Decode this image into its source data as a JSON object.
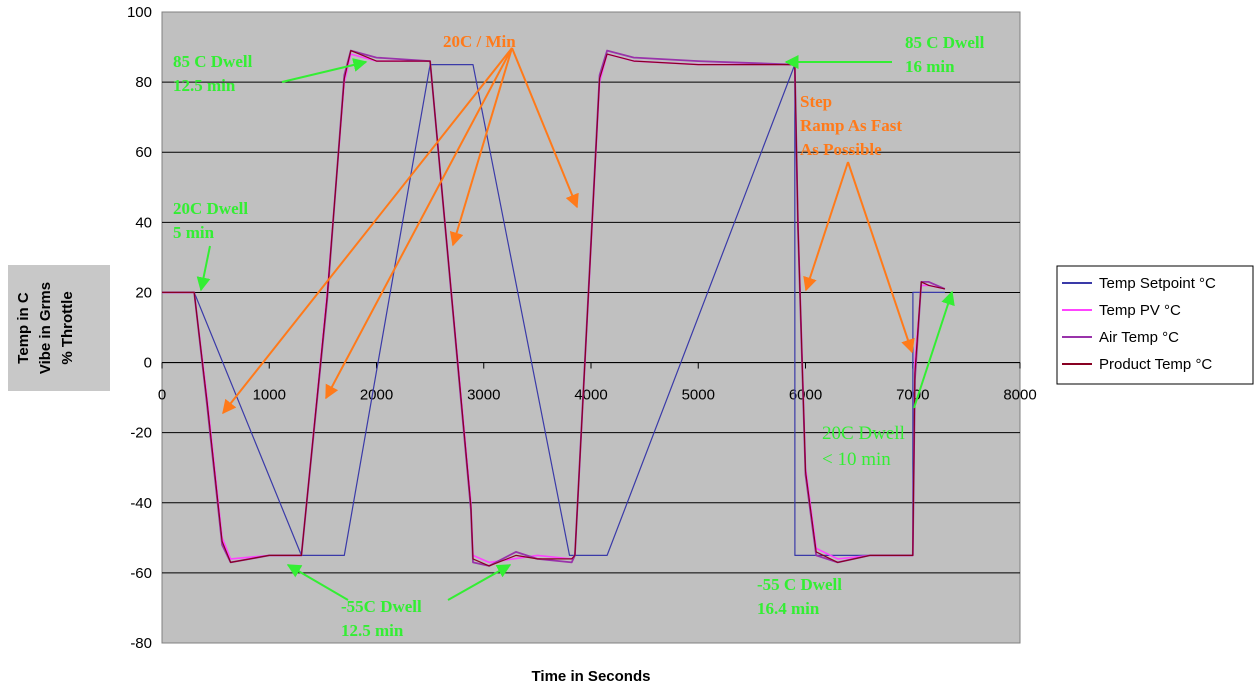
{
  "chart_data": {
    "type": "line",
    "title": "",
    "xlabel": "Time in Seconds",
    "ylabel_lines": [
      "Temp in C",
      "Vibe in Grms",
      "% Throttle"
    ],
    "xlim": [
      0,
      8000
    ],
    "ylim": [
      -80,
      100
    ],
    "x_ticks": [
      0,
      1000,
      2000,
      3000,
      4000,
      5000,
      6000,
      7000,
      8000
    ],
    "y_ticks": [
      -80,
      -60,
      -40,
      -20,
      0,
      20,
      40,
      60,
      80,
      100
    ],
    "grid": "horizontal",
    "legend_position": "right",
    "colors": {
      "plot_bg": "#c0c0c0",
      "setpoint": "#3a3aa8",
      "pv": "#ff44ff",
      "air": "#9933aa",
      "product": "#880022",
      "green_annotation": "#33ee33",
      "orange_annotation": "#ff7a1a"
    },
    "series": [
      {
        "name": "Temp Setpoint °C",
        "x": [
          0,
          300,
          1300,
          1700,
          2500,
          2900,
          3800,
          4150,
          5900,
          5901,
          7000,
          7001,
          7300
        ],
        "y": [
          20,
          20,
          -55,
          -55,
          85,
          85,
          -55,
          -55,
          85,
          -55,
          -55,
          20,
          20
        ]
      },
      {
        "name": "Temp PV °C",
        "x": [
          0,
          300,
          420,
          560,
          640,
          1000,
          1300,
          1540,
          1700,
          1760,
          2000,
          2500,
          2880,
          2900,
          3050,
          3500,
          3820,
          3850,
          4080,
          4150,
          4400,
          5000,
          5900,
          5930,
          6000,
          6100,
          6300,
          6600,
          7000,
          7020,
          7080,
          7150,
          7300
        ],
        "y": [
          20,
          20,
          -10,
          -50,
          -56,
          -55,
          -55,
          20,
          80,
          88,
          86,
          86,
          -40,
          -55,
          -57,
          -55,
          -56,
          -55,
          80,
          88,
          86,
          85,
          85,
          40,
          -30,
          -53,
          -56,
          -55,
          -55,
          0,
          22,
          22,
          21
        ]
      },
      {
        "name": "Air Temp °C",
        "x": [
          0,
          300,
          420,
          560,
          640,
          1000,
          1300,
          1540,
          1700,
          1760,
          2000,
          2500,
          2880,
          2900,
          3050,
          3300,
          3500,
          3820,
          3850,
          4080,
          4150,
          4400,
          5000,
          5900,
          5930,
          6000,
          6100,
          6300,
          6600,
          7000,
          7020,
          7080,
          7150,
          7300
        ],
        "y": [
          20,
          20,
          -12,
          -52,
          -57,
          -55,
          -55,
          18,
          82,
          89,
          87,
          86,
          -42,
          -57,
          -58,
          -54,
          -56,
          -57,
          -55,
          82,
          89,
          87,
          86,
          85,
          38,
          -32,
          -55,
          -57,
          -55,
          -55,
          -5,
          23,
          23,
          21
        ]
      },
      {
        "name": "Product Temp °C",
        "x": [
          0,
          300,
          420,
          560,
          640,
          1000,
          1300,
          1540,
          1700,
          1760,
          2000,
          2500,
          2880,
          2900,
          3050,
          3300,
          3500,
          3820,
          3850,
          4080,
          4150,
          4400,
          5000,
          5900,
          5930,
          6000,
          6100,
          6300,
          6600,
          7000,
          7020,
          7080,
          7150,
          7300
        ],
        "y": [
          20,
          20,
          -11,
          -51,
          -57,
          -55,
          -55,
          19,
          81,
          89,
          86,
          86,
          -41,
          -56,
          -58,
          -55,
          -56,
          -56,
          -55,
          81,
          88,
          86,
          85,
          85,
          39,
          -31,
          -54,
          -57,
          -55,
          -55,
          -3,
          23,
          22,
          21
        ]
      }
    ],
    "annotations": {
      "green": [
        {
          "lines": [
            "85 C Dwell",
            "12.5 min"
          ]
        },
        {
          "lines": [
            "20C Dwell",
            " 5 min"
          ]
        },
        {
          "lines": [
            "85 C Dwell",
            "16 min"
          ]
        },
        {
          "lines": [
            "-55C Dwell",
            "12.5 min"
          ]
        },
        {
          "lines": [
            "-55 C Dwell",
            "16.4 min"
          ]
        },
        {
          "lines": [
            "20C Dwell",
            "< 10 min"
          ]
        }
      ],
      "orange": [
        {
          "lines": [
            "20C / Min"
          ]
        },
        {
          "lines": [
            "Step",
            "Ramp  As Fast",
            "As Possible"
          ]
        }
      ]
    }
  }
}
